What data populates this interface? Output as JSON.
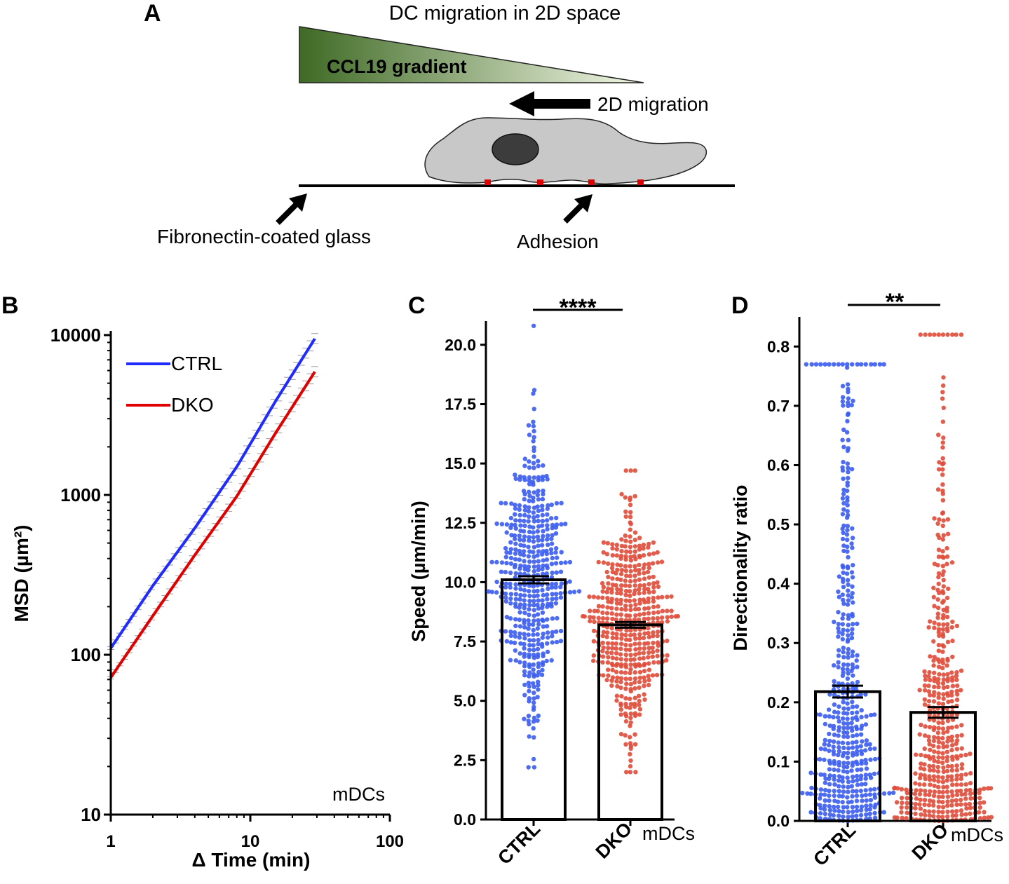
{
  "panel_a": {
    "letter": "A",
    "title": "DC migration in 2D space",
    "gradient_label": "CCL19 gradient",
    "migration_label": "2D migration",
    "substrate_label": "Fibronectin-coated glass",
    "adhesion_label": "Adhesion",
    "colors": {
      "gradient_dark": "#3f6a25",
      "gradient_light": "#f3f8e6",
      "cell": "#c8c8c8",
      "nucleus": "#3c3c3c",
      "adhesion": "#e00000"
    }
  },
  "chart_data": [
    {
      "id": "B",
      "type": "line",
      "letter": "B",
      "xlabel": "Δ Time (min)",
      "ylabel": "MSD (µm²)",
      "xscale": "log",
      "yscale": "log",
      "xlim": [
        1,
        100
      ],
      "ylim": [
        10,
        10000
      ],
      "xticks": [
        "1",
        "10",
        "100"
      ],
      "yticks": [
        "10",
        "100",
        "1000",
        "10000"
      ],
      "legend_position": "top-left",
      "annotation": "mDCs",
      "series": [
        {
          "name": "CTRL",
          "color": "#1f2bff",
          "x": [
            1,
            2,
            4,
            8,
            15,
            29
          ],
          "y": [
            110,
            270,
            620,
            1500,
            3800,
            9500
          ]
        },
        {
          "name": "DKO",
          "color": "#e00000",
          "x": [
            1,
            2,
            4,
            8,
            15,
            29
          ],
          "y": [
            72,
            175,
            420,
            980,
            2400,
            5900
          ]
        }
      ]
    },
    {
      "id": "C",
      "type": "bar",
      "letter": "C",
      "ylabel": "Speed (µm/min)",
      "categories": [
        "CTRL",
        "DKO"
      ],
      "values": [
        10.1,
        8.2
      ],
      "sem": [
        0.15,
        0.12
      ],
      "ylim": [
        0,
        21
      ],
      "yticks": [
        "0.0",
        "2.5",
        "5.0",
        "7.5",
        "10.0",
        "12.5",
        "15.0",
        "17.5",
        "20.0"
      ],
      "significance": "****",
      "annotation": "mDCs",
      "point_colors": [
        "#3a5cf0",
        "#e04b3a"
      ],
      "point_distributions": [
        {
          "n": 470,
          "mean": 10.1,
          "sd": 3.2,
          "min": 2.2,
          "max": 20.8
        },
        {
          "n": 470,
          "mean": 8.2,
          "sd": 2.5,
          "min": 2.0,
          "max": 14.7
        }
      ]
    },
    {
      "id": "D",
      "type": "bar",
      "letter": "D",
      "ylabel": "Directionality ratio",
      "categories": [
        "CTRL",
        "DKO"
      ],
      "values": [
        0.218,
        0.183
      ],
      "sem": [
        0.01,
        0.009
      ],
      "ylim": [
        0,
        0.85
      ],
      "yticks": [
        "0.0",
        "0.1",
        "0.2",
        "0.3",
        "0.4",
        "0.5",
        "0.6",
        "0.7",
        "0.8"
      ],
      "significance": "**",
      "annotation": "mDCs",
      "point_colors": [
        "#3a5cf0",
        "#e04b3a"
      ],
      "point_distributions": [
        {
          "n": 470,
          "median": 0.17,
          "min": 0.0,
          "max": 0.77
        },
        {
          "n": 470,
          "median": 0.14,
          "min": 0.0,
          "max": 0.82
        }
      ]
    }
  ]
}
